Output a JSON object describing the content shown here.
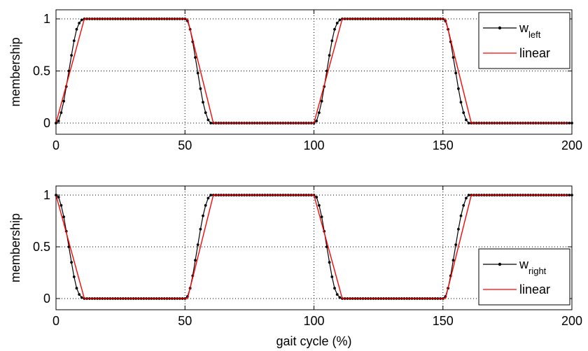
{
  "chart_data": [
    {
      "type": "line",
      "ylabel": "membership",
      "xlabel": "",
      "xlim": [
        0,
        200
      ],
      "ylim": [
        0,
        1
      ],
      "xticks": [
        "0",
        "50",
        "100",
        "150",
        "200"
      ],
      "yticks": [
        "0",
        "0.5",
        "1"
      ],
      "grid": "dotted",
      "legend_placement": "top-right",
      "legend": [
        {
          "base": "w",
          "sub": "left",
          "color": "#000000",
          "marker": "dot"
        },
        {
          "base": "linear",
          "sub": "",
          "color": "#ff0000",
          "marker": "none"
        }
      ],
      "series": [
        {
          "name": "w_left",
          "color": "#000000",
          "x": [
            0,
            1,
            2,
            3,
            4,
            5,
            6,
            7,
            8,
            9,
            10,
            11,
            50,
            51,
            52,
            53,
            54,
            55,
            56,
            57,
            58,
            59,
            60,
            61,
            100,
            101,
            102,
            103,
            104,
            105,
            106,
            107,
            108,
            109,
            110,
            111,
            150,
            151,
            152,
            153,
            154,
            155,
            156,
            157,
            158,
            159,
            160,
            161,
            200
          ],
          "y": [
            0,
            0.02,
            0.1,
            0.21,
            0.35,
            0.5,
            0.65,
            0.79,
            0.9,
            0.96,
            0.99,
            1,
            1,
            0.98,
            0.9,
            0.78,
            0.63,
            0.48,
            0.33,
            0.2,
            0.1,
            0.03,
            0,
            0,
            0,
            0.02,
            0.1,
            0.21,
            0.35,
            0.5,
            0.65,
            0.79,
            0.9,
            0.96,
            0.99,
            1,
            1,
            0.98,
            0.9,
            0.78,
            0.63,
            0.48,
            0.33,
            0.2,
            0.1,
            0.03,
            0,
            0,
            0
          ]
        },
        {
          "name": "linear",
          "color": "#ff0000",
          "x": [
            0,
            11,
            51,
            61,
            100,
            111,
            151,
            161,
            200
          ],
          "y": [
            0,
            1,
            1,
            0,
            0,
            1,
            1,
            0,
            0
          ]
        }
      ]
    },
    {
      "type": "line",
      "ylabel": "membership",
      "xlabel": "gait cycle (%)",
      "xlim": [
        0,
        200
      ],
      "ylim": [
        0,
        1
      ],
      "xticks": [
        "0",
        "50",
        "100",
        "150",
        "200"
      ],
      "yticks": [
        "0",
        "0.5",
        "1"
      ],
      "grid": "dotted",
      "legend_placement": "bottom-right",
      "legend": [
        {
          "base": "w",
          "sub": "right",
          "color": "#000000",
          "marker": "dot"
        },
        {
          "base": "linear",
          "sub": "",
          "color": "#ff0000",
          "marker": "none"
        }
      ],
      "series": [
        {
          "name": "w_right",
          "color": "#000000",
          "x": [
            0,
            1,
            2,
            3,
            4,
            5,
            6,
            7,
            8,
            9,
            10,
            11,
            50,
            51,
            52,
            53,
            54,
            55,
            56,
            57,
            58,
            59,
            60,
            61,
            100,
            101,
            102,
            103,
            104,
            105,
            106,
            107,
            108,
            109,
            110,
            111,
            150,
            151,
            152,
            153,
            154,
            155,
            156,
            157,
            158,
            159,
            160,
            161,
            200
          ],
          "y": [
            1,
            0.98,
            0.9,
            0.79,
            0.65,
            0.5,
            0.35,
            0.21,
            0.1,
            0.04,
            0.01,
            0,
            0,
            0.02,
            0.1,
            0.22,
            0.37,
            0.52,
            0.67,
            0.8,
            0.9,
            0.97,
            1,
            1,
            1,
            0.98,
            0.9,
            0.79,
            0.65,
            0.5,
            0.35,
            0.21,
            0.1,
            0.04,
            0.01,
            0,
            0,
            0.02,
            0.1,
            0.22,
            0.37,
            0.52,
            0.67,
            0.8,
            0.9,
            0.97,
            1,
            1,
            1
          ]
        },
        {
          "name": "linear",
          "color": "#ff0000",
          "x": [
            0,
            11,
            51,
            61,
            100,
            111,
            151,
            161,
            200
          ],
          "y": [
            1,
            0,
            0,
            1,
            1,
            0,
            0,
            1,
            1
          ]
        }
      ]
    }
  ]
}
